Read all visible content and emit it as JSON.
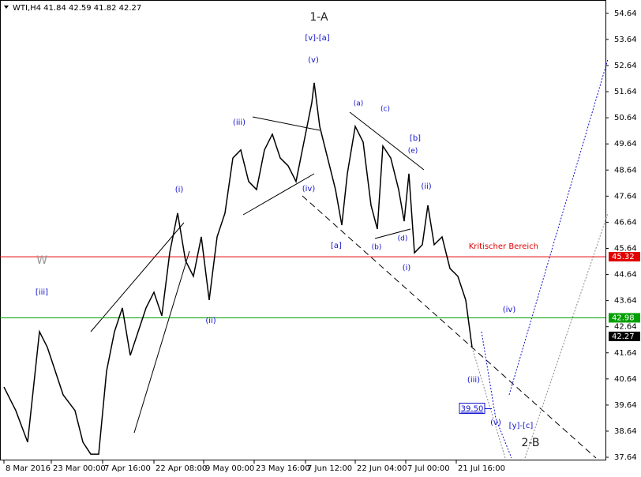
{
  "chart_data": {
    "type": "line",
    "title": "WTI,H4  41.84 42.59 41.82 42.27",
    "x": [
      5,
      20,
      35,
      50,
      60,
      70,
      80,
      95,
      105,
      115,
      125,
      135,
      145,
      155,
      165,
      175,
      185,
      195,
      205,
      215,
      225,
      235,
      245,
      255,
      265,
      275,
      285,
      295,
      305,
      315,
      325,
      335,
      345,
      355,
      365,
      375,
      385,
      395,
      398,
      405,
      415,
      425,
      433,
      440,
      450,
      460,
      470,
      478,
      485,
      495,
      505,
      512,
      518,
      525,
      535,
      542,
      550,
      560,
      570,
      580,
      590,
      598
    ],
    "series": [
      {
        "name": "WTI",
        "color": "#000000",
        "values": [
          40.33,
          39.43,
          38.22,
          42.45,
          41.85,
          40.94,
          40.03,
          39.43,
          38.22,
          37.76,
          37.76,
          40.94,
          42.45,
          43.36,
          41.54,
          42.45,
          43.36,
          43.96,
          43.06,
          45.47,
          46.99,
          45.17,
          44.57,
          46.08,
          43.66,
          46.08,
          46.99,
          49.1,
          49.41,
          48.2,
          47.89,
          49.41,
          50.01,
          49.1,
          48.8,
          48.2,
          49.71,
          51.22,
          51.98,
          50.31,
          49.1,
          47.89,
          46.53,
          48.5,
          50.31,
          49.71,
          47.29,
          46.38,
          49.56,
          49.1,
          47.89,
          46.68,
          48.5,
          45.47,
          45.78,
          47.29,
          45.78,
          46.08,
          44.87,
          44.57,
          43.66,
          41.85
        ]
      }
    ],
    "xlim": [
      0,
      767
    ],
    "xticks": [
      {
        "value": 5,
        "label": "8 Mar 2016"
      },
      {
        "value": 65,
        "label": "23 Mar 00:00"
      },
      {
        "value": 130,
        "label": "7 Apr 16:00"
      },
      {
        "value": 195,
        "label": "22 Apr 08:00"
      },
      {
        "value": 258,
        "label": "9 May 00:00"
      },
      {
        "value": 322,
        "label": "23 May 16:00"
      },
      {
        "value": 387,
        "label": "7 Jun 12:00"
      },
      {
        "value": 450,
        "label": "22 Jun 04:00"
      },
      {
        "value": 514,
        "label": "7 Jul 00:00"
      },
      {
        "value": 578,
        "label": "21 Jul 16:00"
      }
    ],
    "ylim": [
      37.52,
      55.15
    ],
    "yticks": [
      54.64,
      53.64,
      52.64,
      51.64,
      50.64,
      49.64,
      48.64,
      47.64,
      46.64,
      45.64,
      44.64,
      43.64,
      42.64,
      41.64,
      40.64,
      39.64,
      38.64,
      37.64
    ],
    "levels": [
      {
        "value": 45.32,
        "label": "Kritischer Bereich",
        "color": "#e00000"
      },
      {
        "value": 42.98,
        "color": "#00a000"
      }
    ],
    "last_price": 42.27,
    "target": {
      "value": 39.5,
      "label": "39.50"
    },
    "annotations": [
      "1-A",
      "[v]-[a]",
      "(v)",
      "(iii)",
      "(i)",
      "[iii]",
      "W",
      "(ii)",
      "(iv)",
      "[a]",
      "(a)",
      "(c)",
      "[b]",
      "(e)",
      "(ii)",
      "(b)",
      "(d)",
      "(i)",
      "(iii)",
      "(iv)",
      "(v)",
      "[y]-[c]",
      "2-B"
    ]
  }
}
